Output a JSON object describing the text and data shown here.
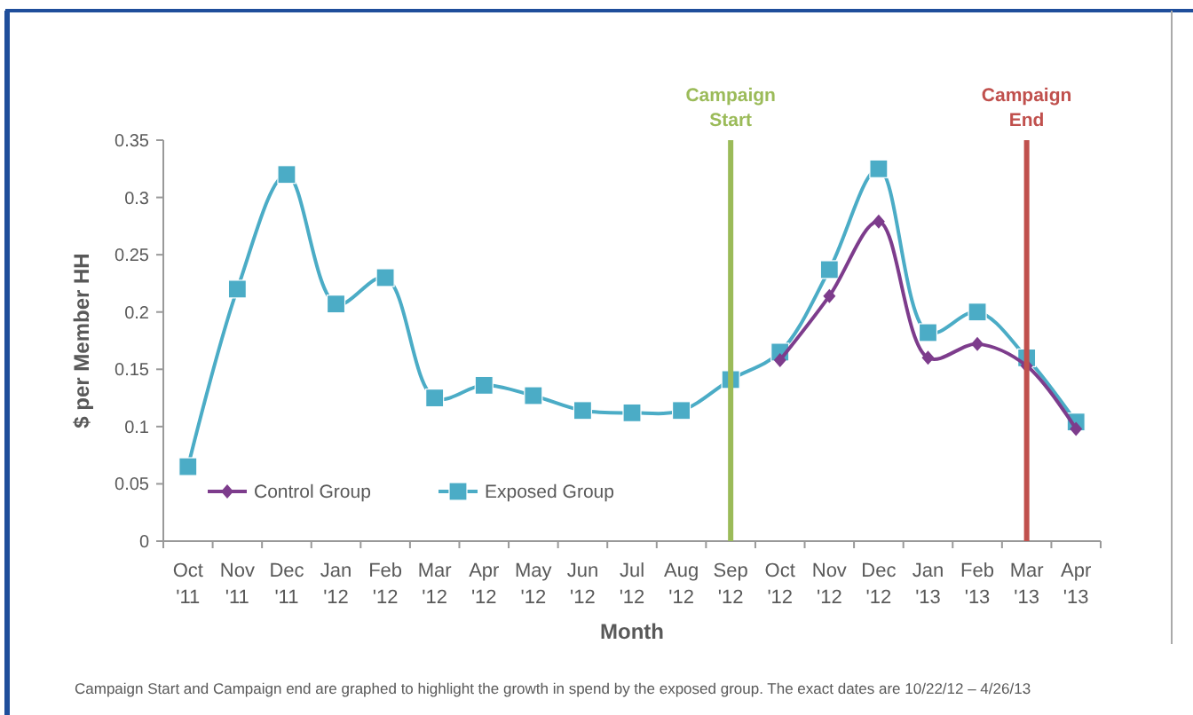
{
  "chart_data": {
    "type": "line",
    "xlabel": "Month",
    "ylabel": "$ per Member HH",
    "categories": [
      "Oct '11",
      "Nov '11",
      "Dec '11",
      "Jan '12",
      "Feb '12",
      "Mar '12",
      "Apr '12",
      "May '12",
      "Jun '12",
      "Jul '12",
      "Aug '12",
      "Sep '12",
      "Oct '12",
      "Nov '12",
      "Dec '12",
      "Jan '13",
      "Feb '13",
      "Mar '13",
      "Apr '13"
    ],
    "series": [
      {
        "name": "Control Group",
        "color": "#7d3c8c",
        "marker": "diamond",
        "values": [
          null,
          null,
          null,
          null,
          null,
          null,
          null,
          null,
          null,
          null,
          null,
          null,
          0.158,
          0.214,
          0.279,
          0.16,
          0.172,
          0.153,
          0.098
        ]
      },
      {
        "name": "Exposed Group",
        "color": "#4bacc6",
        "marker": "square",
        "values": [
          0.065,
          0.22,
          0.32,
          0.207,
          0.23,
          0.125,
          0.136,
          0.127,
          0.114,
          0.112,
          0.114,
          0.141,
          0.165,
          0.237,
          0.325,
          0.182,
          0.2,
          0.16,
          0.104
        ]
      }
    ],
    "ylim": [
      0,
      0.35
    ],
    "yticks": [
      0,
      0.05,
      0.1,
      0.15,
      0.2,
      0.25,
      0.3,
      0.35
    ],
    "grid": false,
    "legend": "bottom left",
    "ref_lines": [
      {
        "axis": "x",
        "value": "Sep '12",
        "label": "Campaign Start",
        "color": "#9bbb59"
      },
      {
        "axis": "x",
        "value": "Mar '13",
        "label": "Campaign End",
        "color": "#c0504d"
      }
    ],
    "annotations": [
      "Campaign Start and Campaign end are graphed to highlight the growth in spend by the exposed group. The exact dates are  10/22/12 – 4/26/13"
    ]
  }
}
